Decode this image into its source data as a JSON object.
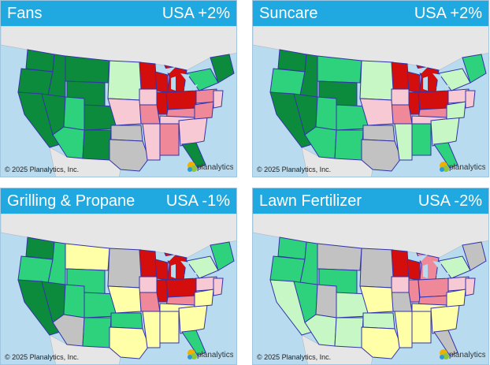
{
  "panels": [
    {
      "title": "Fans",
      "change": "USA +2%",
      "tiers": [
        "dg",
        "dg",
        "dg",
        "dg",
        "dg",
        "dg",
        "dg",
        "mg",
        "mg",
        "dg",
        "dg",
        "lg",
        "dr",
        "dr",
        "dr",
        "dr",
        "dr",
        "pr",
        "lp",
        "pr",
        "lp",
        "gy",
        "gy",
        "lp",
        "pr",
        "lp",
        "pr",
        "lp",
        "pr",
        "mg",
        "lp",
        "dg"
      ]
    },
    {
      "title": "Suncare",
      "change": "USA +2%",
      "tiers": [
        "dg",
        "mg",
        "dg",
        "dg",
        "dg",
        "mg",
        "dg",
        "mg",
        "mg",
        "mg",
        "mg",
        "lg",
        "dr",
        "dr",
        "dr",
        "dr",
        "dr",
        "pr",
        "lp",
        "pr",
        "lp",
        "gy",
        "gy",
        "lg",
        "mg",
        "lp",
        "lp",
        "lg",
        "lg",
        "lg",
        "lp",
        "mg"
      ]
    },
    {
      "title": "Grilling & Propane",
      "change": "USA -1%",
      "tiers": [
        "dg",
        "mg",
        "dg",
        "mg",
        "dg",
        "ye",
        "mg",
        "mg",
        "gy",
        "mg",
        "mg",
        "gy",
        "dr",
        "dr",
        "dr",
        "dr",
        "dr",
        "pr",
        "lp",
        "pr",
        "ye",
        "mg",
        "ye",
        "ye",
        "ye",
        "ye",
        "lp",
        "ye",
        "ye",
        "lg",
        "lp",
        "mg"
      ]
    },
    {
      "title": "Lawn Fertilizer",
      "change": "USA -2%",
      "tiers": [
        "mg",
        "mg",
        "lg",
        "mg",
        "mg",
        "gy",
        "mg",
        "gy",
        "lg",
        "lg",
        "lg",
        "gy",
        "dr",
        "dr",
        "pr",
        "pr",
        "pr",
        "pr",
        "lp",
        "gy",
        "ye",
        "lg",
        "ye",
        "ye",
        "ye",
        "ye",
        "lp",
        "ye",
        "ye",
        "lg",
        "lp",
        "gy"
      ]
    }
  ],
  "copyright": "© 2025 Planalytics, Inc.",
  "logo_text": "planalytics",
  "colors": {
    "dg": "#0c8b3c",
    "mg": "#2fd27c",
    "lg": "#c6f7c4",
    "gy": "#c2c2c2",
    "lp": "#f7c9d4",
    "pr": "#ef8898",
    "dr": "#d40d0d",
    "ye": "#ffffa8",
    "water": "#b9dbf0",
    "border": "#3333aa",
    "header": "#1fa9e0"
  }
}
